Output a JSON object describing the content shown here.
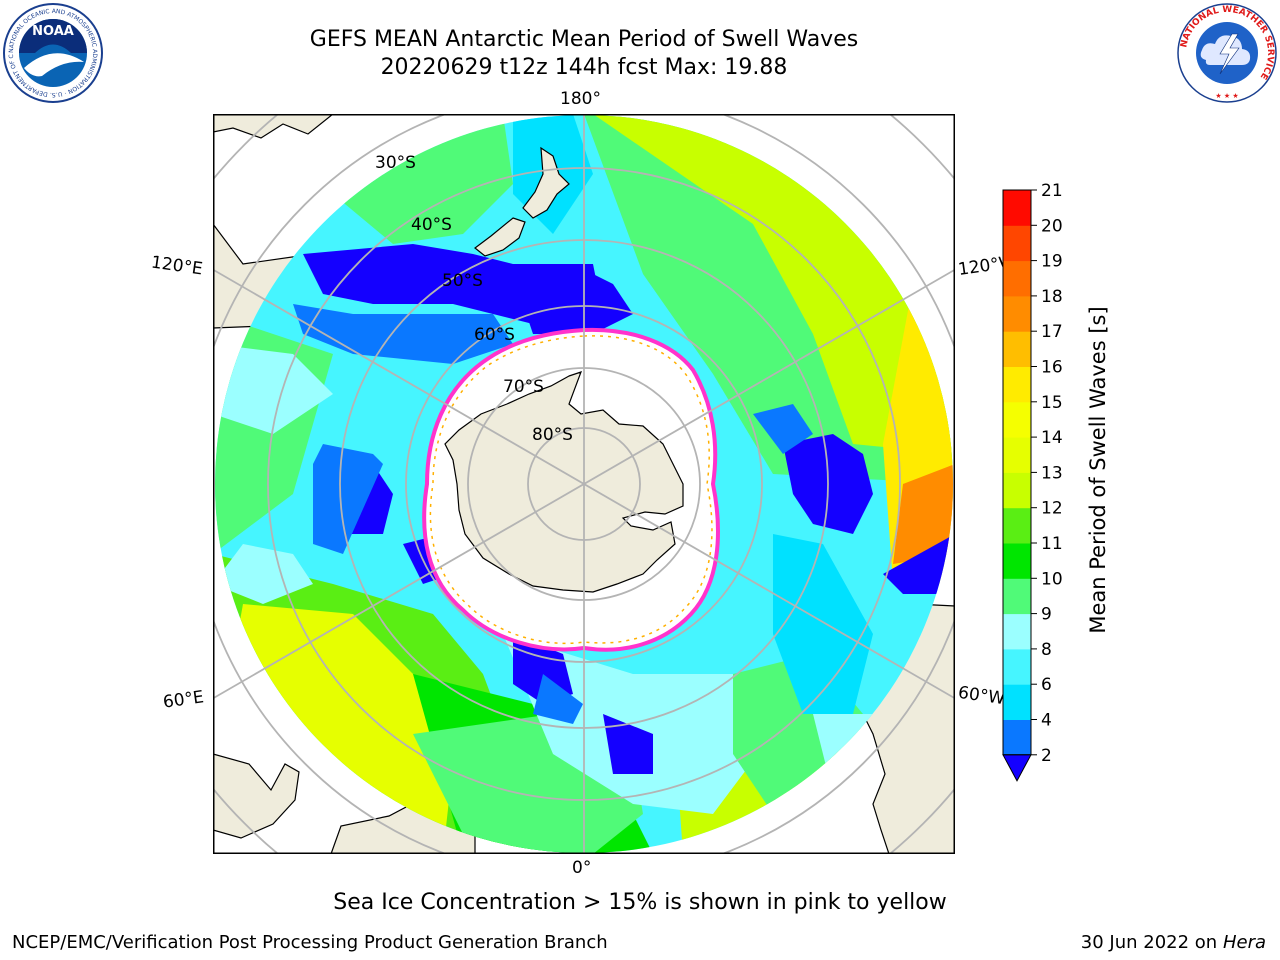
{
  "header": {
    "title_line1": "GEFS MEAN Antarctic Mean Period of Swell Waves",
    "title_line2": "20220629 t12z 144h fcst   Max: 19.88"
  },
  "logos": {
    "noaa_text": "NOAA",
    "noaa_ring_text": "NATIONAL OCEANIC AND ATMOSPHERIC ADMINISTRATION · U.S. DEPARTMENT OF COMMERCE",
    "nws_ring_text": "NATIONAL WEATHER SERVICE"
  },
  "map": {
    "projection": "south-polar-stereographic",
    "longitude_labels": [
      "180°",
      "120°E",
      "120°W",
      "60°E",
      "60°W",
      "0°"
    ],
    "latitude_labels": [
      "30°S",
      "40°S",
      "50°S",
      "60°S",
      "70°S",
      "80°S"
    ],
    "land_color": "#efecdc",
    "ice_color": "#ffffff",
    "ice_edge_colors": [
      "#ff33cc",
      "#ffb000",
      "#ffe400"
    ],
    "grid_color": "#b4b4b4"
  },
  "colorbar": {
    "label": "Mean Period of Swell Waves [s]",
    "ticks": [
      "2",
      "4",
      "6",
      "8",
      "9",
      "10",
      "11",
      "12",
      "13",
      "14",
      "15",
      "16",
      "17",
      "18",
      "19",
      "20",
      "21"
    ],
    "bins": [
      {
        "from": 2,
        "to": 4,
        "color": "#0a78ff"
      },
      {
        "from": 4,
        "to": 6,
        "color": "#00e1ff"
      },
      {
        "from": 6,
        "to": 8,
        "color": "#46f5ff"
      },
      {
        "from": 8,
        "to": 9,
        "color": "#9bffff"
      },
      {
        "from": 9,
        "to": 10,
        "color": "#50fa78"
      },
      {
        "from": 10,
        "to": 11,
        "color": "#00e600"
      },
      {
        "from": 11,
        "to": 12,
        "color": "#5aee14"
      },
      {
        "from": 12,
        "to": 13,
        "color": "#c8ff00"
      },
      {
        "from": 13,
        "to": 14,
        "color": "#e6ff00"
      },
      {
        "from": 14,
        "to": 15,
        "color": "#f5ff00"
      },
      {
        "from": 15,
        "to": 16,
        "color": "#ffeb00"
      },
      {
        "from": 16,
        "to": 17,
        "color": "#ffbe00"
      },
      {
        "from": 17,
        "to": 18,
        "color": "#ff8c00"
      },
      {
        "from": 18,
        "to": 19,
        "color": "#ff6e00"
      },
      {
        "from": 19,
        "to": 20,
        "color": "#ff4600"
      },
      {
        "from": 20,
        "to": 21,
        "color": "#ff0a00"
      }
    ],
    "under_color": "#1400ff"
  },
  "footer": {
    "note": "Sea Ice Concentration > 15% is shown in pink to yellow",
    "left": "NCEP/EMC/Verification Post Processing Product Generation Branch",
    "right_date": "30 Jun 2022 on",
    "right_host": "Hera"
  }
}
